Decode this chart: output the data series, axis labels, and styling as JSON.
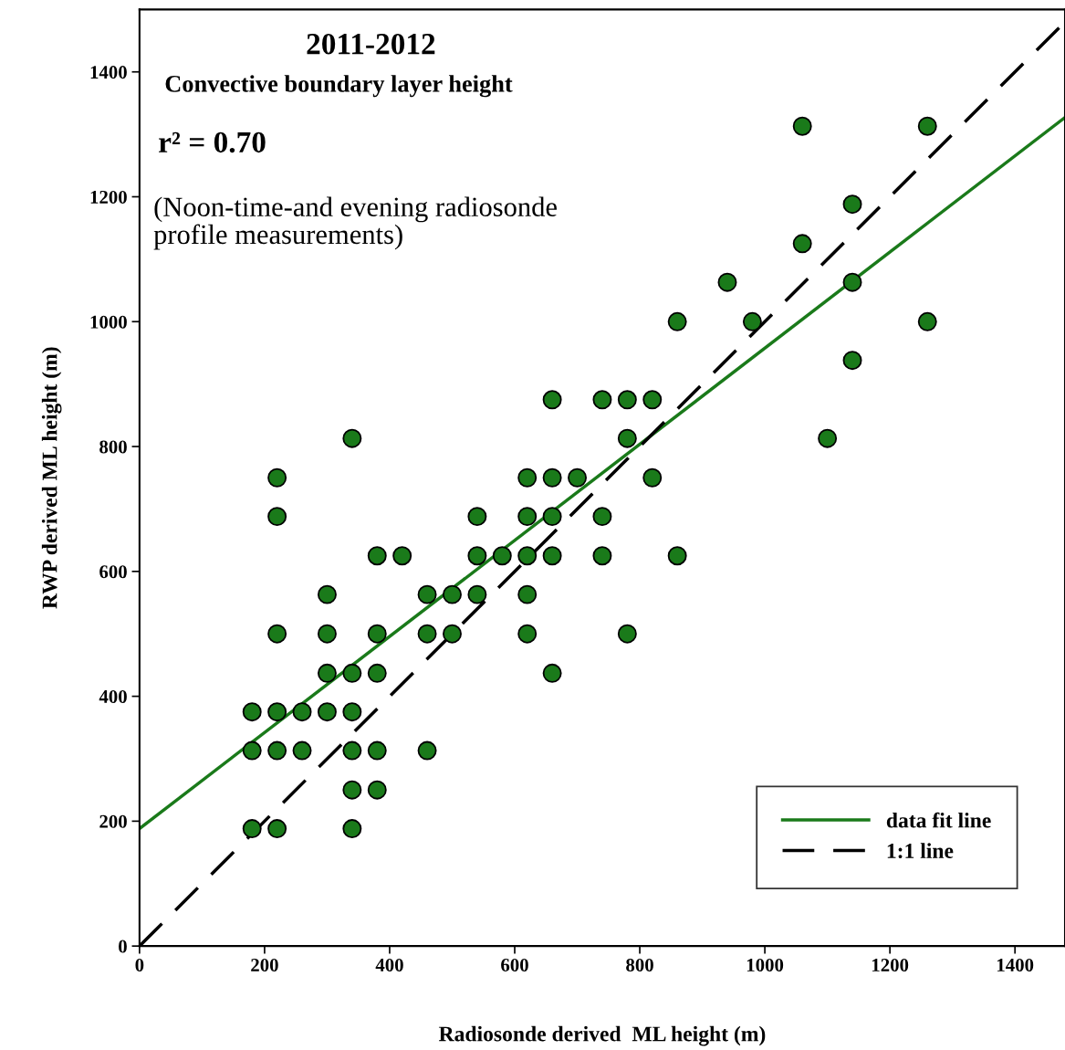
{
  "chart_data": {
    "type": "scatter",
    "title": "2011-2012",
    "subtitle": "Convective boundary layer height",
    "xlabel": "Radiosonde derived  ML height (m)",
    "ylabel": "RWP derived ML height (m)",
    "annotations": [
      "r² = 0.70",
      "(Noon-time-and evening radiosonde\nprofile measurements)"
    ],
    "xlim": [
      0,
      1480
    ],
    "ylim": [
      0,
      1500
    ],
    "xticks": [
      0,
      200,
      400,
      600,
      800,
      1000,
      1200,
      1400
    ],
    "yticks": [
      0,
      200,
      400,
      600,
      800,
      1000,
      1200,
      1400
    ],
    "grid": false,
    "legend": "bottom right",
    "series": [
      {
        "color": "#1a7a1a",
        "marker": "circle",
        "x": [
          180,
          180,
          180,
          220,
          220,
          220,
          220,
          220,
          220,
          260,
          260,
          300,
          300,
          300,
          300,
          340,
          340,
          340,
          340,
          340,
          340,
          380,
          380,
          380,
          380,
          380,
          420,
          460,
          460,
          460,
          500,
          500,
          540,
          540,
          540,
          580,
          620,
          620,
          620,
          620,
          620,
          660,
          660,
          660,
          660,
          660,
          700,
          740,
          740,
          740,
          780,
          780,
          780,
          820,
          820,
          860,
          860,
          940,
          980,
          1060,
          1060,
          1100,
          1140,
          1140,
          1140,
          1260,
          1260
        ],
        "values": [
          375,
          313,
          188,
          750,
          688,
          500,
          375,
          313,
          188,
          375,
          313,
          563,
          500,
          437,
          375,
          813,
          437,
          375,
          313,
          250,
          188,
          625,
          500,
          437,
          313,
          250,
          625,
          563,
          500,
          313,
          563,
          500,
          688,
          625,
          563,
          625,
          750,
          688,
          625,
          563,
          500,
          875,
          750,
          688,
          625,
          437,
          750,
          875,
          688,
          625,
          875,
          813,
          500,
          875,
          750,
          1000,
          625,
          1063,
          1000,
          1313,
          1125,
          813,
          1188,
          1063,
          938,
          1313,
          1000
        ]
      },
      {
        "type": "line",
        "name": "data fit line",
        "color": "#1a7a1a",
        "line_style": "solid",
        "x": [
          0,
          1480
        ],
        "values": [
          188,
          1327
        ]
      },
      {
        "type": "line",
        "name": "1:1 line",
        "color": "#000000",
        "line_style": "dashed",
        "x": [
          0,
          1480
        ],
        "values": [
          0,
          1480
        ]
      }
    ]
  }
}
